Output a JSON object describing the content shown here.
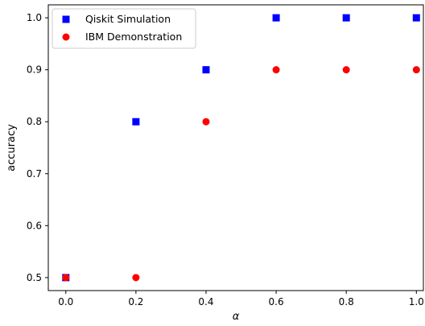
{
  "chart_data": {
    "type": "scatter",
    "title": "",
    "xlabel": "α",
    "ylabel": "accuracy",
    "xlim": [
      -0.05,
      1.02
    ],
    "ylim": [
      0.475,
      1.025
    ],
    "xticks": [
      0.0,
      0.2,
      0.4,
      0.6,
      0.8,
      1.0
    ],
    "xtick_labels": [
      "0.0",
      "0.2",
      "0.4",
      "0.6",
      "0.8",
      "1.0"
    ],
    "yticks": [
      0.5,
      0.6,
      0.7,
      0.8,
      0.9,
      1.0
    ],
    "ytick_labels": [
      "0.5",
      "0.6",
      "0.7",
      "0.8",
      "0.9",
      "1.0"
    ],
    "grid": false,
    "legend_position": "top-left",
    "series": [
      {
        "name": "Qiskit Simulation",
        "marker": "square",
        "color": "#0000ff",
        "x": [
          0.0,
          0.2,
          0.4,
          0.6,
          0.8,
          1.0
        ],
        "y": [
          0.5,
          0.8,
          0.9,
          1.0,
          1.0,
          1.0
        ]
      },
      {
        "name": "IBM Demonstration",
        "marker": "circle",
        "color": "#ff0000",
        "x": [
          0.0,
          0.2,
          0.4,
          0.6,
          0.8,
          1.0
        ],
        "y": [
          0.5,
          0.5,
          0.8,
          0.9,
          0.9,
          0.9
        ]
      }
    ]
  }
}
